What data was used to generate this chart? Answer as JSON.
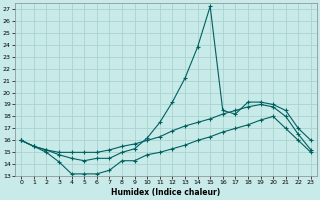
{
  "xlabel": "Humidex (Indice chaleur)",
  "bg_color": "#c8eae8",
  "grid_color": "#aad4d0",
  "line_color": "#006060",
  "xlim": [
    -0.5,
    23.5
  ],
  "ylim": [
    13,
    27.5
  ],
  "yticks": [
    13,
    14,
    15,
    16,
    17,
    18,
    19,
    20,
    21,
    22,
    23,
    24,
    25,
    26,
    27
  ],
  "xticks": [
    0,
    1,
    2,
    3,
    4,
    5,
    6,
    7,
    8,
    9,
    10,
    11,
    12,
    13,
    14,
    15,
    16,
    17,
    18,
    19,
    20,
    21,
    22,
    23
  ],
  "line1_x": [
    0,
    1,
    2,
    3,
    4,
    5,
    6,
    7,
    8,
    9,
    10,
    11,
    12,
    13,
    14,
    15,
    16,
    17,
    18,
    19,
    20,
    21,
    22,
    23
  ],
  "line1_y": [
    16.0,
    15.5,
    15.0,
    14.2,
    13.2,
    13.2,
    13.2,
    13.5,
    14.3,
    14.3,
    14.8,
    15.0,
    15.3,
    15.6,
    16.0,
    16.3,
    16.7,
    17.0,
    17.3,
    17.7,
    18.0,
    17.0,
    16.0,
    15.0
  ],
  "line2_x": [
    0,
    1,
    2,
    3,
    4,
    5,
    6,
    7,
    8,
    9,
    10,
    11,
    12,
    13,
    14,
    15,
    16,
    17,
    18,
    19,
    20,
    21,
    22,
    23
  ],
  "line2_y": [
    16.0,
    15.5,
    15.2,
    15.0,
    15.0,
    15.0,
    15.0,
    15.2,
    15.5,
    15.7,
    16.0,
    16.3,
    16.8,
    17.2,
    17.5,
    17.8,
    18.2,
    18.5,
    18.8,
    19.0,
    18.8,
    18.0,
    16.5,
    15.2
  ],
  "line3_x": [
    0,
    1,
    2,
    3,
    4,
    5,
    6,
    7,
    8,
    9,
    10,
    11,
    12,
    13,
    14,
    15,
    16,
    17,
    18,
    19,
    20,
    21,
    22,
    23
  ],
  "line3_y": [
    16.0,
    15.5,
    15.2,
    14.8,
    14.5,
    14.3,
    14.5,
    14.5,
    15.0,
    15.3,
    16.2,
    17.5,
    19.2,
    21.2,
    23.8,
    27.2,
    18.5,
    18.2,
    19.2,
    19.2,
    19.0,
    18.5,
    17.0,
    16.0
  ]
}
